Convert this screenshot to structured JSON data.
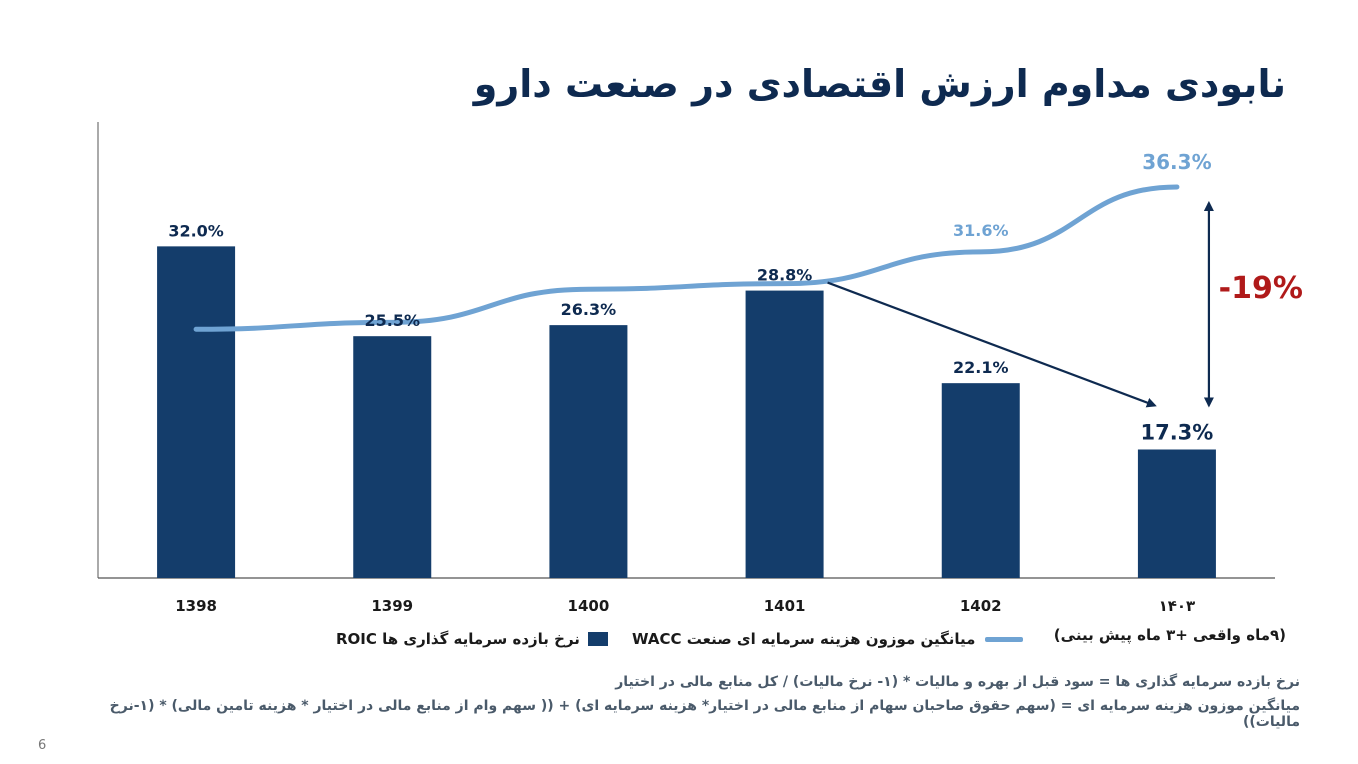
{
  "title": "نابودی مداوم ارزش اقتصادی در صنعت دارو",
  "chart_data": {
    "type": "bar",
    "categories": [
      "1398",
      "1399",
      "1400",
      "1401",
      "1402",
      "۱۴۰۳"
    ],
    "series": [
      {
        "name": "نرخ بازده سرمایه گذاری ها ROIC",
        "kind": "bar",
        "values": [
          32.0,
          25.5,
          26.3,
          28.8,
          22.1,
          17.3
        ],
        "labels": [
          "32.0%",
          "25.5%",
          "26.3%",
          "28.8%",
          "22.1%",
          "17.3%"
        ],
        "color": "#143d6b"
      },
      {
        "name": "میانگین موزون هزینه سرمایه ای صنعت WACC",
        "kind": "line",
        "values": [
          26.0,
          26.5,
          28.9,
          29.3,
          31.6,
          36.3
        ],
        "labels": [
          "",
          "",
          "",
          "",
          "31.6%",
          "36.3%"
        ],
        "color": "#6fa3d3"
      }
    ],
    "gap_label": "-19%",
    "gap_color": "#b01a1a",
    "ylim": [
      8,
      41
    ],
    "legend_position": "bottom"
  },
  "last_category_note": "(۹ماه واقعی +۳ ماه پیش بینی)",
  "legend": {
    "roic": "نرخ بازده سرمایه گذاری ها ROIC",
    "wacc": "میانگین موزون هزینه سرمایه ای صنعت WACC"
  },
  "notes": {
    "line1": "نرخ بازده سرمایه گذاری ها = سود قبل از بهره و مالیات * (۱- نرخ مالیات) / کل منابع مالی در اختیار",
    "line2": "میانگین موزون هزینه سرمایه ای = (سهم حقوق صاحبان سهام از منابع مالی در اختیار* هزینه سرمایه ای) + (( سهم وام از منابع مالی در اختیار * هزینه تامین مالی) * (۱-نرخ مالیات))"
  },
  "page_number": "6"
}
